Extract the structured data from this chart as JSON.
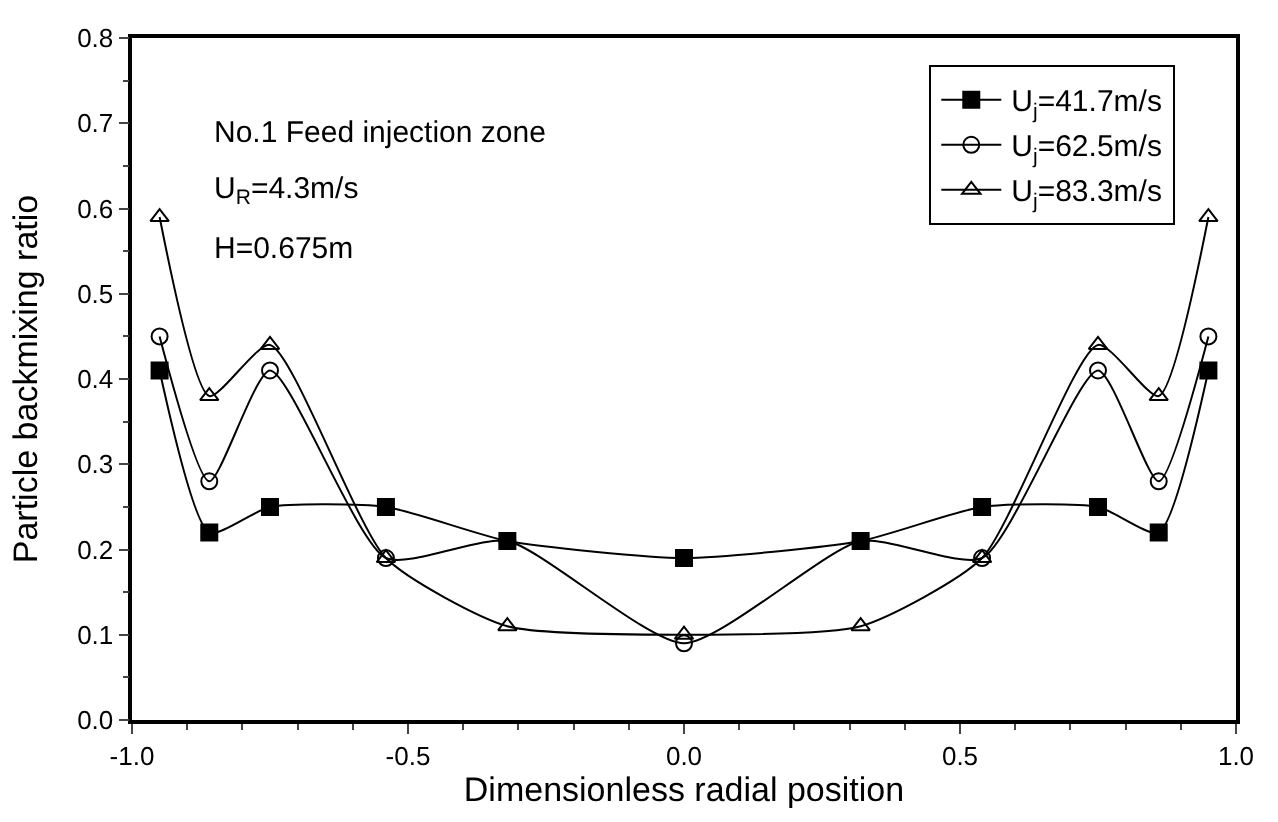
{
  "chart_data": {
    "type": "line",
    "xlabel": "Dimensionless radial position",
    "ylabel": "Particle backmixing ratio",
    "annotations": [
      "No.1 Feed injection zone",
      "U$_{R}$=4.3m/s",
      "H=0.675m"
    ],
    "x": [
      -0.95,
      -0.86,
      -0.75,
      -0.54,
      -0.32,
      0,
      0.32,
      0.54,
      0.75,
      0.86,
      0.95
    ],
    "series": [
      {
        "name": "U$_{j}$=41.7m/s",
        "color": "#000000",
        "marker": "square",
        "values": [
          0.41,
          0.22,
          0.25,
          0.25,
          0.21,
          0.19,
          0.21,
          0.25,
          0.25,
          0.22,
          0.41
        ]
      },
      {
        "name": "U$_{j}$=62.5m/s",
        "color": "#000000",
        "marker": "circle",
        "values": [
          0.45,
          0.28,
          0.41,
          0.19,
          0.21,
          0.09,
          0.21,
          0.19,
          0.41,
          0.28,
          0.45
        ]
      },
      {
        "name": "U$_{j}$=83.3m/s",
        "color": "#000000",
        "marker": "triangle",
        "values": [
          0.59,
          0.38,
          0.44,
          0.19,
          0.11,
          0.1,
          0.11,
          0.19,
          0.44,
          0.38,
          0.59
        ]
      }
    ],
    "xlim": [
      -1.0,
      1.0
    ],
    "xticks": [
      {
        "value": -1.0,
        "label": "-1.0"
      },
      {
        "value": -0.5,
        "label": "-0.5"
      },
      {
        "value": 0,
        "label": "0.0"
      },
      {
        "value": 0.5,
        "label": "0.5"
      },
      {
        "value": 1.0,
        "label": "1.0"
      }
    ],
    "ylim": [
      0,
      0.8
    ],
    "yticks": [
      {
        "value": 0,
        "label": "0.0"
      },
      0.1,
      0.2,
      0.3,
      0.4,
      0.5,
      0.6,
      0.7,
      0.8
    ],
    "legend": "top right",
    "line_style": "solid"
  }
}
